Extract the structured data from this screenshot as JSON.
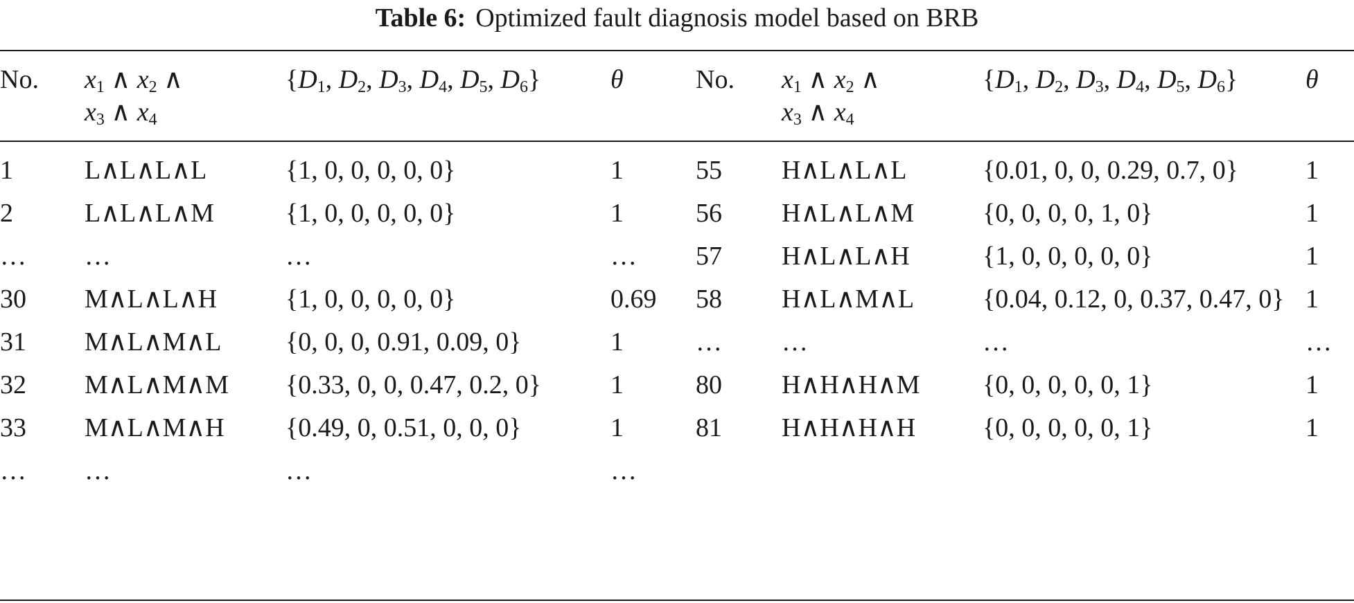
{
  "caption": {
    "label": "Table 6:",
    "text": "Optimized fault diagnosis model based on BRB"
  },
  "header": {
    "no": "No.",
    "theta": "θ"
  },
  "rows": [
    {
      "l_no": "1",
      "l_x": "L∧L∧L∧L",
      "l_d": "{1, 0, 0, 0, 0, 0}",
      "l_t": "1",
      "r_no": "55",
      "r_x": "H∧L∧L∧L",
      "r_d": "{0.01, 0, 0, 0.29, 0.7, 0}",
      "r_t": "1"
    },
    {
      "l_no": "2",
      "l_x": "L∧L∧L∧M",
      "l_d": "{1, 0, 0, 0, 0, 0}",
      "l_t": "1",
      "r_no": "56",
      "r_x": "H∧L∧L∧M",
      "r_d": "{0, 0, 0, 0, 1, 0}",
      "r_t": "1"
    },
    {
      "l_no": "…",
      "l_x": "…",
      "l_d": "…",
      "l_t": "…",
      "r_no": "57",
      "r_x": "H∧L∧L∧H",
      "r_d": "{1, 0, 0, 0, 0, 0}",
      "r_t": "1"
    },
    {
      "l_no": "30",
      "l_x": "M∧L∧L∧H",
      "l_d": "{1, 0, 0, 0, 0, 0}",
      "l_t": "0.69",
      "r_no": "58",
      "r_x": "H∧L∧M∧L",
      "r_d": "{0.04, 0.12, 0, 0.37, 0.47, 0}",
      "r_t": "1"
    },
    {
      "l_no": "31",
      "l_x": "M∧L∧M∧L",
      "l_d": "{0, 0, 0, 0.91, 0.09, 0}",
      "l_t": "1",
      "r_no": "…",
      "r_x": "…",
      "r_d": "…",
      "r_t": "…"
    },
    {
      "l_no": "32",
      "l_x": "M∧L∧M∧M",
      "l_d": "{0.33, 0, 0, 0.47, 0.2, 0}",
      "l_t": "1",
      "r_no": "80",
      "r_x": "H∧H∧H∧M",
      "r_d": "{0, 0, 0, 0, 0, 1}",
      "r_t": "1"
    },
    {
      "l_no": "33",
      "l_x": "M∧L∧M∧H",
      "l_d": "{0.49, 0, 0.51, 0, 0, 0}",
      "l_t": "1",
      "r_no": "81",
      "r_x": "H∧H∧H∧H",
      "r_d": "{0, 0, 0, 0, 0, 1}",
      "r_t": "1"
    },
    {
      "l_no": "…",
      "l_x": "…",
      "l_d": "…",
      "l_t": "…",
      "r_no": "",
      "r_x": "",
      "r_d": "",
      "r_t": ""
    }
  ]
}
